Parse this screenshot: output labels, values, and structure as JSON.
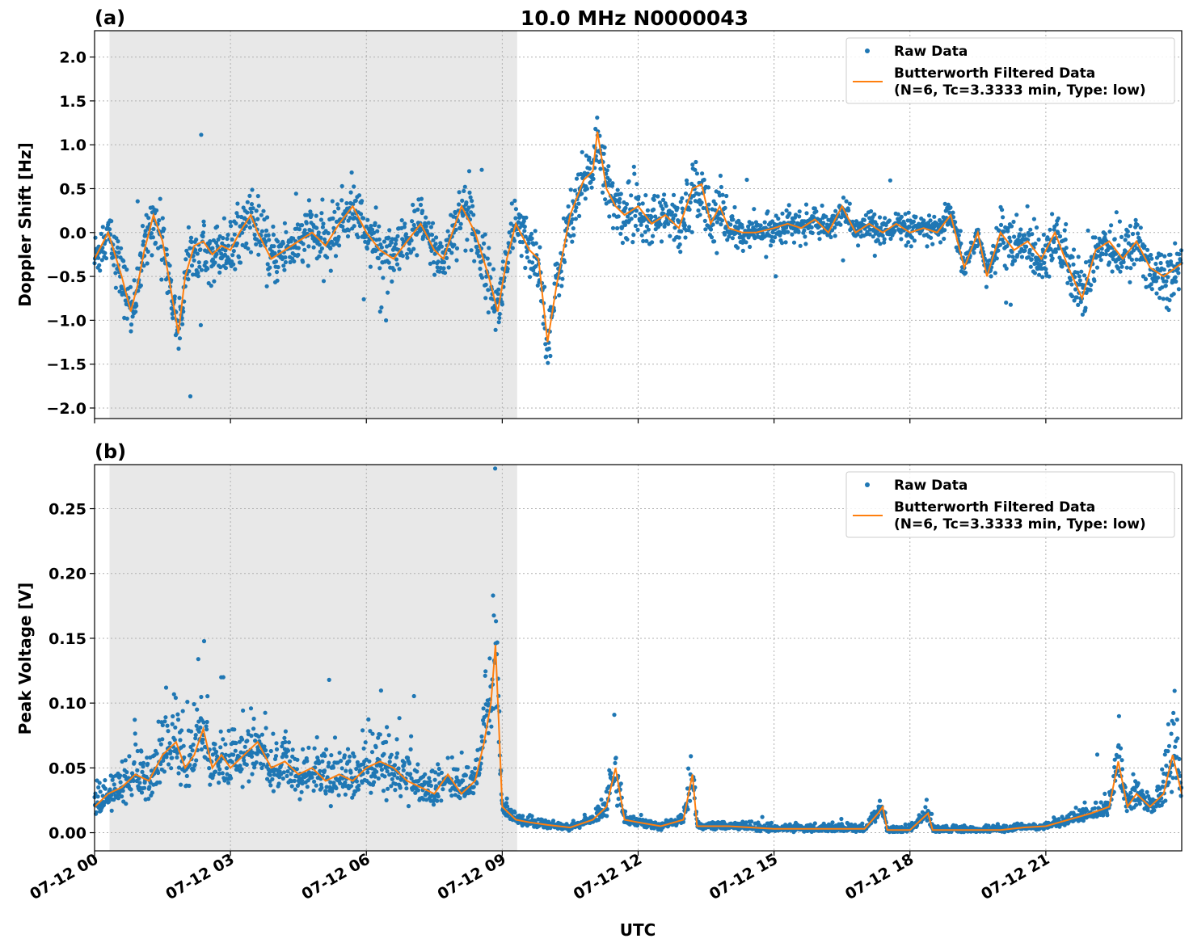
{
  "title": "10.0 MHz N0000043",
  "xlabel": "UTC",
  "xtick_labels": [
    "07-12 00",
    "07-12 03",
    "07-12 06",
    "07-12 09",
    "07-12 12",
    "07-12 15",
    "07-12 18",
    "07-12 21"
  ],
  "legend": {
    "raw": "Raw Data",
    "filtered_line1": "Butterworth Filtered Data",
    "filtered_line2": "(N=6, Tc=3.3333 min, Type: low)"
  },
  "colors": {
    "raw": "#1f77b4",
    "filtered": "#ff7f0e",
    "shade": "#e8e8e8"
  },
  "chart_data": [
    {
      "type": "scatter",
      "panel_label": "(a)",
      "ylabel": "Doppler Shift [Hz]",
      "xlim": [
        0,
        24
      ],
      "ylim": [
        -2.12,
        2.3
      ],
      "yticks": [
        -2.0,
        -1.5,
        -1.0,
        -0.5,
        0.0,
        0.5,
        1.0,
        1.5,
        2.0
      ],
      "ytick_labels": [
        "−2.0",
        "−1.5",
        "−1.0",
        "−0.5",
        "0.0",
        "0.5",
        "1.0",
        "1.5",
        "2.0"
      ],
      "shaded_span_hours": [
        0.33,
        9.33
      ],
      "grid": true,
      "legend_position": "top-right",
      "series": [
        {
          "name": "Butterworth Filtered Data",
          "x": [
            0.0,
            0.3,
            0.6,
            0.8,
            0.95,
            1.1,
            1.3,
            1.5,
            1.7,
            1.85,
            2.0,
            2.2,
            2.4,
            2.6,
            2.8,
            3.0,
            3.2,
            3.45,
            3.6,
            3.9,
            4.2,
            4.5,
            4.8,
            5.1,
            5.4,
            5.7,
            6.0,
            6.3,
            6.6,
            6.9,
            7.2,
            7.5,
            7.7,
            7.9,
            8.1,
            8.4,
            8.7,
            8.9,
            9.1,
            9.3,
            9.6,
            9.8,
            10.0,
            10.2,
            10.5,
            10.8,
            11.0,
            11.1,
            11.3,
            11.5,
            11.7,
            12.0,
            12.3,
            12.6,
            12.9,
            13.2,
            13.4,
            13.6,
            13.8,
            14.0,
            14.3,
            14.6,
            15.0,
            15.3,
            15.6,
            15.9,
            16.2,
            16.5,
            16.8,
            17.1,
            17.4,
            17.7,
            18.0,
            18.3,
            18.6,
            18.9,
            19.2,
            19.5,
            19.7,
            20.0,
            20.3,
            20.6,
            20.9,
            21.2,
            21.5,
            21.8,
            22.1,
            22.4,
            22.7,
            23.0,
            23.3,
            23.6,
            24.0
          ],
          "y": [
            -0.3,
            0.0,
            -0.5,
            -0.9,
            -0.6,
            -0.2,
            0.2,
            -0.1,
            -0.7,
            -1.15,
            -0.5,
            -0.15,
            -0.1,
            -0.25,
            -0.15,
            -0.2,
            0.0,
            0.2,
            0.0,
            -0.3,
            -0.2,
            -0.1,
            0.0,
            -0.15,
            0.1,
            0.3,
            0.0,
            -0.2,
            -0.3,
            -0.1,
            0.1,
            -0.2,
            -0.3,
            0.0,
            0.3,
            0.0,
            -0.5,
            -0.9,
            -0.3,
            0.1,
            -0.2,
            -0.3,
            -1.25,
            -0.6,
            0.2,
            0.6,
            0.7,
            1.15,
            0.5,
            0.3,
            0.2,
            0.3,
            0.1,
            0.2,
            0.05,
            0.5,
            0.55,
            0.1,
            0.3,
            0.05,
            0.0,
            0.0,
            0.05,
            0.1,
            0.05,
            0.15,
            0.0,
            0.3,
            0.0,
            0.1,
            0.0,
            0.1,
            0.0,
            0.05,
            0.0,
            0.2,
            -0.4,
            0.0,
            -0.5,
            0.0,
            -0.2,
            -0.1,
            -0.3,
            0.0,
            -0.4,
            -0.75,
            -0.2,
            -0.1,
            -0.3,
            -0.1,
            -0.4,
            -0.5,
            -0.35
          ]
        }
      ]
    },
    {
      "type": "scatter",
      "panel_label": "(b)",
      "ylabel": "Peak Voltage [V]",
      "xlim": [
        0,
        24
      ],
      "ylim": [
        -0.014,
        0.284
      ],
      "yticks": [
        0.0,
        0.05,
        0.1,
        0.15,
        0.2,
        0.25
      ],
      "ytick_labels": [
        "0.00",
        "0.05",
        "0.10",
        "0.15",
        "0.20",
        "0.25"
      ],
      "shaded_span_hours": [
        0.33,
        9.33
      ],
      "grid": true,
      "legend_position": "top-right",
      "series": [
        {
          "name": "Butterworth Filtered Data",
          "x": [
            0.0,
            0.3,
            0.6,
            0.9,
            1.2,
            1.5,
            1.8,
            2.0,
            2.2,
            2.4,
            2.6,
            2.8,
            3.0,
            3.3,
            3.6,
            3.9,
            4.2,
            4.5,
            4.8,
            5.1,
            5.4,
            5.7,
            6.0,
            6.3,
            6.6,
            6.9,
            7.2,
            7.5,
            7.8,
            8.1,
            8.4,
            8.6,
            8.75,
            8.85,
            9.0,
            9.3,
            9.6,
            10.0,
            10.5,
            11.0,
            11.3,
            11.5,
            11.7,
            12.0,
            12.5,
            13.0,
            13.2,
            13.3,
            13.6,
            14.0,
            15.0,
            16.0,
            17.0,
            17.3,
            17.4,
            17.5,
            18.0,
            18.4,
            18.5,
            19.0,
            20.0,
            20.5,
            21.0,
            21.5,
            22.0,
            22.4,
            22.6,
            22.8,
            23.0,
            23.3,
            23.6,
            23.8,
            24.0
          ],
          "y": [
            0.02,
            0.03,
            0.035,
            0.045,
            0.04,
            0.06,
            0.07,
            0.05,
            0.06,
            0.08,
            0.05,
            0.06,
            0.05,
            0.06,
            0.07,
            0.05,
            0.055,
            0.045,
            0.05,
            0.04,
            0.045,
            0.04,
            0.05,
            0.055,
            0.05,
            0.04,
            0.035,
            0.03,
            0.045,
            0.03,
            0.04,
            0.07,
            0.1,
            0.145,
            0.02,
            0.01,
            0.008,
            0.006,
            0.004,
            0.01,
            0.02,
            0.05,
            0.01,
            0.008,
            0.005,
            0.01,
            0.045,
            0.005,
            0.005,
            0.005,
            0.003,
            0.003,
            0.003,
            0.015,
            0.02,
            0.002,
            0.002,
            0.015,
            0.002,
            0.002,
            0.002,
            0.004,
            0.005,
            0.01,
            0.015,
            0.02,
            0.055,
            0.02,
            0.03,
            0.02,
            0.03,
            0.06,
            0.03
          ]
        }
      ]
    }
  ]
}
